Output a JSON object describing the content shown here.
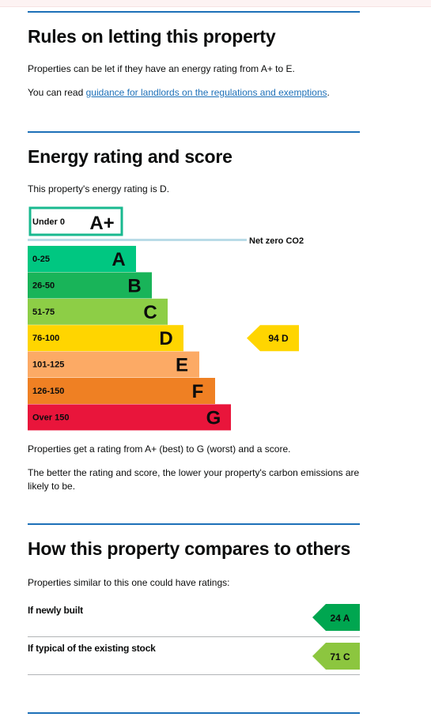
{
  "rules": {
    "heading": "Rules on letting this property",
    "intro": "Properties can be let if they have an energy rating from A+ to E.",
    "guidance_prefix": "You can read ",
    "guidance_link": "guidance for landlords on the regulations and exemptions",
    "guidance_suffix": "."
  },
  "energy": {
    "heading": "Energy rating and score",
    "summary": "This property's energy rating is D.",
    "net_zero_label": "Net zero CO2",
    "explain_1": "Properties get a rating from A+ (best) to G (worst) and a score.",
    "explain_2": "The better the rating and score, the lower your property's carbon emissions are likely to be."
  },
  "compare": {
    "heading": "How this property compares to others",
    "intro": "Properties similar to this one could have ratings:",
    "rows": [
      {
        "label": "If newly built",
        "score": "24",
        "band": "A",
        "color": "#00a650"
      },
      {
        "label": "If typical of the existing stock",
        "score": "71",
        "band": "C",
        "color": "#8cc63f"
      }
    ]
  },
  "chart_data": {
    "type": "bar",
    "bands": [
      {
        "letter": "A+",
        "range": "Under 0",
        "color": "#ffffff",
        "outline": "#19b98f"
      },
      {
        "letter": "A",
        "range": "0-25",
        "color": "#00c781"
      },
      {
        "letter": "B",
        "range": "26-50",
        "color": "#19b459"
      },
      {
        "letter": "C",
        "range": "51-75",
        "color": "#8dce46"
      },
      {
        "letter": "D",
        "range": "76-100",
        "color": "#ffd500"
      },
      {
        "letter": "E",
        "range": "101-125",
        "color": "#fcaa65"
      },
      {
        "letter": "F",
        "range": "126-150",
        "color": "#ef8023"
      },
      {
        "letter": "G",
        "range": "Over 150",
        "color": "#e9153b"
      }
    ],
    "current": {
      "score": "94",
      "band": "D",
      "color": "#ffd500"
    }
  }
}
